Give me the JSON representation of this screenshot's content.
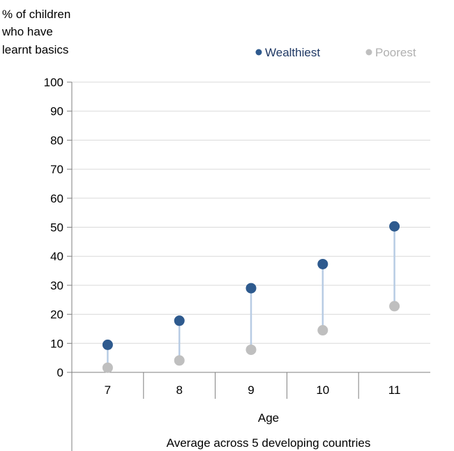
{
  "chart_data": {
    "type": "scatter",
    "ylabel_lines": [
      "% of children",
      "who have",
      "learnt basics"
    ],
    "xlabel": "Age",
    "subtitle": "Average across 5 developing countries",
    "categories": [
      "7",
      "8",
      "9",
      "10",
      "11"
    ],
    "ylim": [
      0,
      100
    ],
    "yticks": [
      0,
      10,
      20,
      30,
      40,
      50,
      60,
      70,
      80,
      90,
      100
    ],
    "ytick_labels": [
      "0",
      "10",
      "20",
      "30",
      "40",
      "50",
      "60",
      "70",
      "80",
      "90",
      "100"
    ],
    "grid": true,
    "legend_position": "top-right",
    "series": [
      {
        "name": "Wealthiest",
        "values": [
          9.5,
          17.8,
          29,
          37.3,
          50.3
        ],
        "color": "#2e5a8e"
      },
      {
        "name": "Poorest",
        "values": [
          1.6,
          4.1,
          7.8,
          14.5,
          22.8
        ],
        "color": "#bfbfbf"
      }
    ],
    "connector_color": "#b8cce4",
    "legend_text_colors": [
      "#1f3864",
      "#b0b0b0"
    ]
  }
}
